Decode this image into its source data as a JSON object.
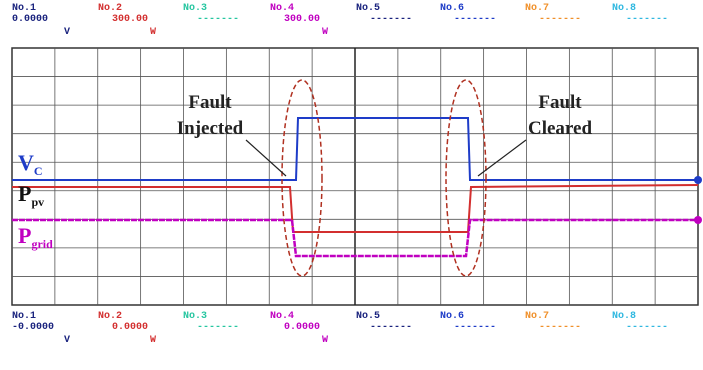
{
  "top_channels": [
    {
      "label": "No.1",
      "value": "0.0000",
      "unit": "V",
      "color": "#1a237e"
    },
    {
      "label": "No.2",
      "value": "300.00",
      "unit": "W",
      "color": "#d32f2f"
    },
    {
      "label": "No.3",
      "value": "-------",
      "color": "#26c6a0"
    },
    {
      "label": "No.4",
      "value": "300.00",
      "unit": "W",
      "color": "#c000c0"
    },
    {
      "label": "No.5",
      "value": "-------",
      "color": "#1a237e"
    },
    {
      "label": "No.6",
      "value": "-------",
      "color": "#1e3cc8"
    },
    {
      "label": "No.7",
      "value": "-------",
      "color": "#f0902a"
    },
    {
      "label": "No.8",
      "value": "-------",
      "color": "#30b8e0"
    }
  ],
  "bottom_channels": [
    {
      "label": "No.1",
      "value": "-0.0000",
      "unit": "V",
      "color": "#1a237e"
    },
    {
      "label": "No.2",
      "value": "0.0000",
      "unit": "W",
      "color": "#d32f2f"
    },
    {
      "label": "No.3",
      "value": "-------",
      "color": "#26c6a0"
    },
    {
      "label": "No.4",
      "value": "0.0000",
      "unit": "W",
      "color": "#c000c0"
    },
    {
      "label": "No.5",
      "value": "-------",
      "color": "#1a237e"
    },
    {
      "label": "No.6",
      "value": "-------",
      "color": "#1e3cc8"
    },
    {
      "label": "No.7",
      "value": "-------",
      "color": "#f0902a"
    },
    {
      "label": "No.8",
      "value": "-------",
      "color": "#30b8e0"
    }
  ],
  "annotations": [
    {
      "lines": [
        "Fault",
        "Injected"
      ]
    },
    {
      "lines": [
        "Fault",
        "Cleared"
      ]
    }
  ],
  "trace_labels": [
    {
      "main": "V",
      "sub": "C",
      "color": "#1e3cc8"
    },
    {
      "main": "P",
      "sub": "pv",
      "color": "#111111"
    },
    {
      "main": "P",
      "sub": "grid",
      "color": "#c000c0"
    }
  ]
}
